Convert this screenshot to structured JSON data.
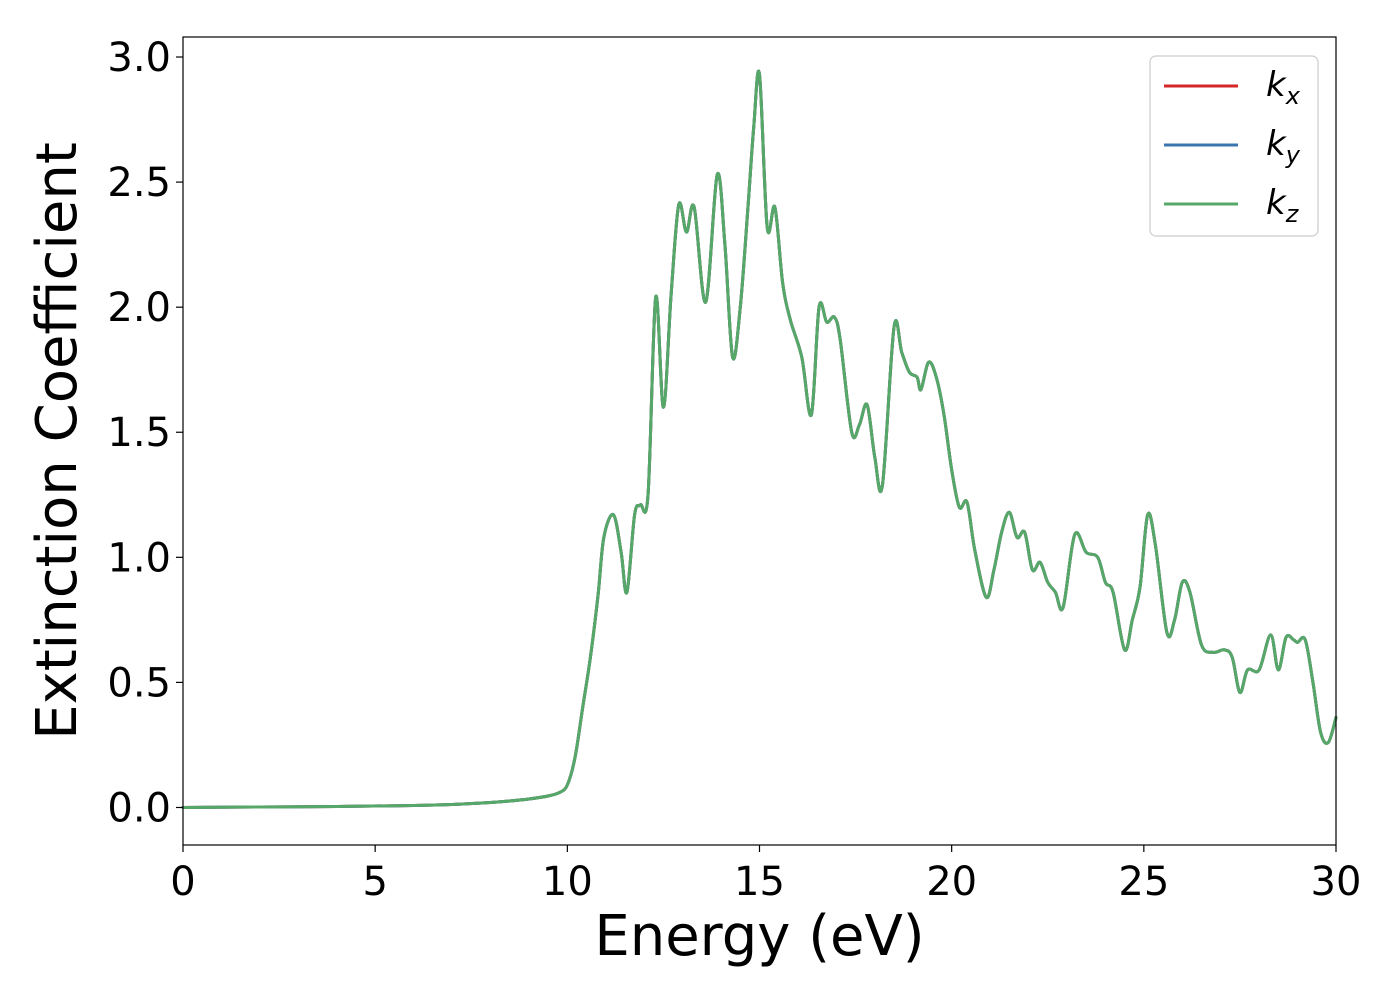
{
  "chart_data": {
    "type": "line",
    "title": "",
    "xlabel": "Energy (eV)",
    "ylabel": "Extinction Coefficient",
    "xlim": [
      0,
      30
    ],
    "ylim": [
      -0.15,
      3.08
    ],
    "xticks": [
      0,
      5,
      10,
      15,
      20,
      25,
      30
    ],
    "yticks": [
      0.0,
      0.5,
      1.0,
      1.5,
      2.0,
      2.5,
      3.0
    ],
    "xtick_labels": [
      "0",
      "5",
      "10",
      "15",
      "20",
      "25",
      "30"
    ],
    "ytick_labels": [
      "0.0",
      "0.5",
      "1.0",
      "1.5",
      "2.0",
      "2.5",
      "3.0"
    ],
    "grid": false,
    "legend_position": "top-right",
    "x": [
      0,
      2,
      4,
      6,
      7,
      8,
      8.5,
      9,
      9.5,
      9.8,
      10.0,
      10.2,
      10.4,
      10.6,
      10.8,
      10.95,
      11.2,
      11.4,
      11.55,
      11.75,
      11.9,
      12.1,
      12.3,
      12.5,
      12.7,
      12.9,
      13.1,
      13.3,
      13.6,
      13.9,
      14.1,
      14.3,
      14.5,
      14.7,
      14.85,
      15.0,
      15.2,
      15.4,
      15.6,
      15.8,
      16.1,
      16.35,
      16.55,
      16.75,
      16.95,
      17.1,
      17.4,
      17.6,
      17.8,
      18.0,
      18.2,
      18.5,
      18.7,
      18.9,
      19.1,
      19.2,
      19.4,
      19.6,
      19.8,
      20.0,
      20.2,
      20.4,
      20.6,
      20.9,
      21.1,
      21.3,
      21.5,
      21.7,
      21.9,
      22.1,
      22.3,
      22.5,
      22.7,
      22.9,
      23.2,
      23.5,
      23.8,
      24.0,
      24.2,
      24.5,
      24.7,
      24.9,
      25.1,
      25.3,
      25.6,
      25.8,
      26.0,
      26.2,
      26.5,
      26.8,
      27.1,
      27.3,
      27.5,
      27.7,
      28.0,
      28.3,
      28.5,
      28.7,
      28.9,
      29.0,
      29.2,
      29.4,
      29.6,
      29.8,
      30.0
    ],
    "series": [
      {
        "name": "k_x",
        "color": "#d62728",
        "values": [
          0.0,
          0.002,
          0.004,
          0.008,
          0.012,
          0.02,
          0.026,
          0.034,
          0.046,
          0.06,
          0.09,
          0.2,
          0.4,
          0.6,
          0.85,
          1.08,
          1.17,
          1.02,
          0.86,
          1.17,
          1.21,
          1.25,
          2.04,
          1.6,
          2.05,
          2.41,
          2.3,
          2.4,
          2.02,
          2.53,
          2.25,
          1.8,
          2.0,
          2.4,
          2.72,
          2.93,
          2.32,
          2.4,
          2.1,
          1.95,
          1.8,
          1.57,
          2.0,
          1.94,
          1.96,
          1.87,
          1.5,
          1.53,
          1.61,
          1.4,
          1.29,
          1.92,
          1.82,
          1.74,
          1.72,
          1.67,
          1.78,
          1.72,
          1.57,
          1.35,
          1.2,
          1.22,
          1.03,
          0.84,
          0.95,
          1.1,
          1.18,
          1.08,
          1.1,
          0.95,
          0.98,
          0.9,
          0.86,
          0.8,
          1.09,
          1.02,
          1.0,
          0.9,
          0.86,
          0.63,
          0.75,
          0.88,
          1.17,
          1.05,
          0.7,
          0.75,
          0.9,
          0.86,
          0.65,
          0.62,
          0.63,
          0.6,
          0.46,
          0.55,
          0.55,
          0.69,
          0.55,
          0.68,
          0.67,
          0.66,
          0.67,
          0.5,
          0.3,
          0.26,
          0.36
        ]
      },
      {
        "name": "k_y",
        "color": "#3b75af",
        "values": [
          0.0,
          0.002,
          0.004,
          0.008,
          0.012,
          0.02,
          0.026,
          0.034,
          0.046,
          0.06,
          0.09,
          0.2,
          0.4,
          0.6,
          0.85,
          1.08,
          1.17,
          1.02,
          0.86,
          1.17,
          1.21,
          1.25,
          2.04,
          1.6,
          2.05,
          2.41,
          2.3,
          2.4,
          2.02,
          2.53,
          2.25,
          1.8,
          2.0,
          2.4,
          2.72,
          2.93,
          2.32,
          2.4,
          2.1,
          1.95,
          1.8,
          1.57,
          2.0,
          1.94,
          1.96,
          1.87,
          1.5,
          1.53,
          1.61,
          1.4,
          1.29,
          1.92,
          1.82,
          1.74,
          1.72,
          1.67,
          1.78,
          1.72,
          1.57,
          1.35,
          1.2,
          1.22,
          1.03,
          0.84,
          0.95,
          1.1,
          1.18,
          1.08,
          1.1,
          0.95,
          0.98,
          0.9,
          0.86,
          0.8,
          1.09,
          1.02,
          1.0,
          0.9,
          0.86,
          0.63,
          0.75,
          0.88,
          1.17,
          1.05,
          0.7,
          0.75,
          0.9,
          0.86,
          0.65,
          0.62,
          0.63,
          0.6,
          0.46,
          0.55,
          0.55,
          0.69,
          0.55,
          0.68,
          0.67,
          0.66,
          0.67,
          0.5,
          0.3,
          0.26,
          0.36
        ]
      },
      {
        "name": "k_z",
        "color": "#55a868",
        "values": [
          0.0,
          0.002,
          0.004,
          0.008,
          0.012,
          0.02,
          0.026,
          0.034,
          0.046,
          0.06,
          0.09,
          0.2,
          0.4,
          0.6,
          0.85,
          1.08,
          1.17,
          1.02,
          0.86,
          1.17,
          1.21,
          1.25,
          2.04,
          1.6,
          2.05,
          2.41,
          2.3,
          2.4,
          2.02,
          2.53,
          2.25,
          1.8,
          2.0,
          2.4,
          2.72,
          2.93,
          2.32,
          2.4,
          2.1,
          1.95,
          1.8,
          1.57,
          2.0,
          1.94,
          1.96,
          1.87,
          1.5,
          1.53,
          1.61,
          1.4,
          1.29,
          1.92,
          1.82,
          1.74,
          1.72,
          1.67,
          1.78,
          1.72,
          1.57,
          1.35,
          1.2,
          1.22,
          1.03,
          0.84,
          0.95,
          1.1,
          1.18,
          1.08,
          1.1,
          0.95,
          0.98,
          0.9,
          0.86,
          0.8,
          1.09,
          1.02,
          1.0,
          0.9,
          0.86,
          0.63,
          0.75,
          0.88,
          1.17,
          1.05,
          0.7,
          0.75,
          0.9,
          0.86,
          0.65,
          0.62,
          0.63,
          0.6,
          0.46,
          0.55,
          0.55,
          0.69,
          0.55,
          0.68,
          0.67,
          0.66,
          0.67,
          0.5,
          0.3,
          0.26,
          0.36
        ]
      }
    ],
    "legend": [
      {
        "main": "k",
        "sub": "x"
      },
      {
        "main": "k",
        "sub": "y"
      },
      {
        "main": "k",
        "sub": "z"
      }
    ]
  }
}
